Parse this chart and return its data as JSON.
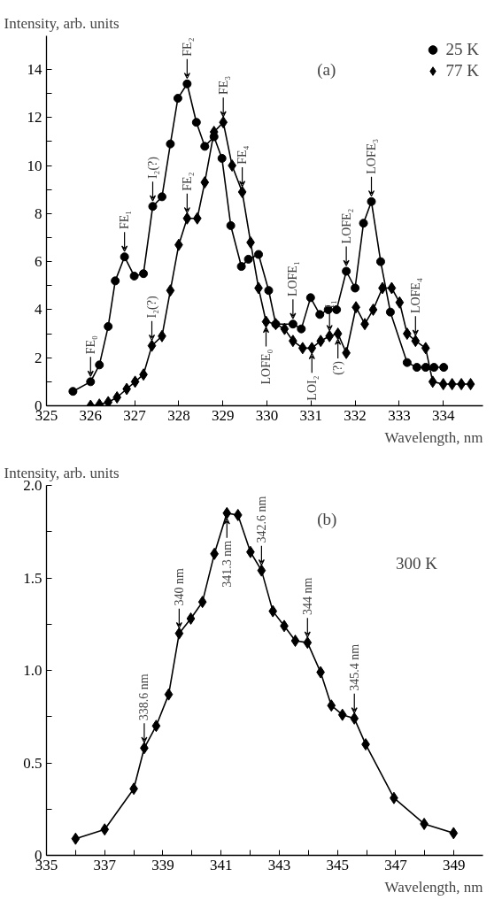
{
  "chart_data": [
    {
      "type": "line",
      "ylabel": "Intensity, arb. units",
      "xlabel": "Wavelength, nm",
      "xlim": [
        325,
        334.9
      ],
      "ylim": [
        0,
        15.4
      ],
      "xticks": [
        325,
        326,
        327,
        328,
        329,
        330,
        331,
        332,
        333,
        334
      ],
      "yticks": [
        0,
        {
          "value": 1,
          "label": null
        },
        2,
        {
          "value": 3,
          "label": null
        },
        4,
        {
          "value": 5,
          "label": null
        },
        6,
        {
          "value": 7,
          "label": null
        },
        8,
        {
          "value": 9,
          "label": null
        },
        10,
        {
          "value": 11,
          "label": null
        },
        12,
        {
          "value": 13,
          "label": null
        },
        14
      ],
      "grid": false,
      "legend": "top right",
      "line_style": "solid",
      "series": [
        {
          "name": "25 K",
          "color": "#000000",
          "marker": "circle",
          "x": [
            325.6,
            326.0,
            326.2,
            326.4,
            326.56,
            326.77,
            326.99,
            327.2,
            327.41,
            327.62,
            327.81,
            327.98,
            328.19,
            328.4,
            328.59,
            328.8,
            328.98,
            329.18,
            329.42,
            329.58,
            329.81,
            330.04,
            330.2,
            330.59,
            330.78,
            330.99,
            331.2,
            331.39,
            331.58,
            331.8,
            332.0,
            332.19,
            332.37,
            332.58,
            332.8,
            333.18,
            333.4,
            333.6,
            333.79,
            334.01
          ],
          "values": [
            0.6,
            1.0,
            1.7,
            3.3,
            5.2,
            6.2,
            5.4,
            5.5,
            8.3,
            8.7,
            10.9,
            12.8,
            13.4,
            11.8,
            10.8,
            11.2,
            10.3,
            7.5,
            5.8,
            6.1,
            6.3,
            4.8,
            3.4,
            3.4,
            3.2,
            4.5,
            3.8,
            4.0,
            4.0,
            5.6,
            4.9,
            7.6,
            8.5,
            6.0,
            3.9,
            1.8,
            1.6,
            1.6,
            1.6,
            1.6
          ]
        },
        {
          "name": "77 K",
          "color": "#000000",
          "marker": "diamond",
          "x": [
            326.0,
            326.2,
            326.4,
            326.6,
            326.82,
            327.01,
            327.2,
            327.39,
            327.62,
            327.81,
            328.0,
            328.19,
            328.42,
            328.59,
            328.8,
            329.01,
            329.21,
            329.44,
            329.63,
            329.81,
            329.98,
            330.2,
            330.4,
            330.59,
            330.81,
            331.02,
            331.22,
            331.42,
            331.61,
            331.8,
            332.02,
            332.22,
            332.41,
            332.62,
            332.83,
            333.01,
            333.18,
            333.37,
            333.6,
            333.76,
            334.0,
            334.2,
            334.41,
            334.62
          ],
          "values": [
            0.0,
            0.05,
            0.15,
            0.35,
            0.7,
            1.0,
            1.3,
            2.5,
            2.9,
            4.8,
            6.7,
            7.8,
            7.8,
            9.3,
            11.4,
            11.8,
            10.0,
            8.9,
            6.8,
            4.9,
            3.5,
            3.4,
            3.2,
            2.7,
            2.4,
            2.4,
            2.7,
            2.9,
            3.0,
            2.2,
            4.1,
            3.4,
            4.0,
            4.9,
            4.9,
            4.3,
            3.0,
            2.7,
            2.4,
            1.0,
            0.9,
            0.9,
            0.9,
            0.9
          ]
        }
      ],
      "annotations": [
        "(a)",
        {
          "text": "FE₀",
          "x": 326.0,
          "y": 1.0
        },
        {
          "text": "FE₁",
          "x": 326.77,
          "y": 6.2
        },
        {
          "text": "I₂(?)",
          "x": 327.41,
          "y": 8.3
        },
        {
          "text": "FE₂",
          "x": 328.19,
          "y": 13.4
        },
        {
          "text": "FE₃",
          "x": 329.01,
          "y": 11.8
        },
        {
          "text": "FE₄",
          "x": 329.44,
          "y": 8.9
        },
        {
          "text": "FE₂",
          "x": 328.19,
          "y": 7.8
        },
        {
          "text": "I₂(?)",
          "x": 327.39,
          "y": 2.5
        },
        {
          "text": "LOFE₀",
          "x": 329.98,
          "y": 3.5
        },
        {
          "text": "LOFE₁",
          "x": 330.59,
          "y": 3.4
        },
        {
          "text": "LOI₂",
          "x": 331.02,
          "y": 2.4
        },
        {
          "text": "I₁",
          "x": 331.42,
          "y": 2.9
        },
        {
          "text": "(?)",
          "x": 331.61,
          "y": 3.0
        },
        {
          "text": "LOFE₂",
          "x": 331.8,
          "y": 5.6
        },
        {
          "text": "LOFE₃",
          "x": 332.37,
          "y": 8.5
        },
        {
          "text": "LOFE₄",
          "x": 333.37,
          "y": 2.7
        }
      ]
    },
    {
      "type": "line",
      "ylabel": "Intensity, arb. units",
      "xlabel": "Wavelength, nm",
      "xlim": [
        335,
        350
      ],
      "ylim": [
        0,
        2.0
      ],
      "xticks": [
        335,
        {
          "value": 336,
          "label": null
        },
        337,
        {
          "value": 338,
          "label": null
        },
        339,
        {
          "value": 340,
          "label": null
        },
        341,
        {
          "value": 342,
          "label": null
        },
        343,
        {
          "value": 344,
          "label": null
        },
        345,
        {
          "value": 346,
          "label": null
        },
        347,
        {
          "value": 348,
          "label": null
        },
        349
      ],
      "yticks": [
        0,
        {
          "value": 0.25,
          "label": null
        },
        0.5,
        {
          "value": 0.75,
          "label": null
        },
        {
          "value": 1.0,
          "label": "1.0"
        },
        {
          "value": 1.25,
          "label": null
        },
        1.5,
        {
          "value": 1.75,
          "label": null
        },
        {
          "value": 2.0,
          "label": "2.0"
        }
      ],
      "grid": false,
      "line_style": "solid",
      "series": [
        {
          "color": "#000000",
          "marker": "diamond",
          "x": [
            336.0,
            337.0,
            338.0,
            338.36,
            338.77,
            339.2,
            339.56,
            339.96,
            340.36,
            340.77,
            341.2,
            341.58,
            342.01,
            342.39,
            342.78,
            343.17,
            343.55,
            343.97,
            344.42,
            344.79,
            345.17,
            345.58,
            345.97,
            346.94,
            347.98,
            348.99
          ],
          "values": [
            0.09,
            0.14,
            0.36,
            0.58,
            0.7,
            0.87,
            1.2,
            1.28,
            1.37,
            1.63,
            1.85,
            1.84,
            1.64,
            1.54,
            1.32,
            1.24,
            1.16,
            1.15,
            0.99,
            0.81,
            0.76,
            0.74,
            0.6,
            0.31,
            0.17,
            0.12
          ]
        }
      ],
      "annotations": [
        "(b)",
        "300 K",
        {
          "text": "338.6 nm",
          "x": 338.36,
          "y": 0.58
        },
        {
          "text": "340 nm",
          "x": 339.56,
          "y": 1.2
        },
        {
          "text": "341.3 nm",
          "x": 341.2,
          "y": 1.85
        },
        {
          "text": "342.6 nm",
          "x": 342.39,
          "y": 1.54
        },
        {
          "text": "344 nm",
          "x": 343.97,
          "y": 1.15
        },
        {
          "text": "345.4 nm",
          "x": 345.58,
          "y": 0.74
        }
      ]
    }
  ]
}
